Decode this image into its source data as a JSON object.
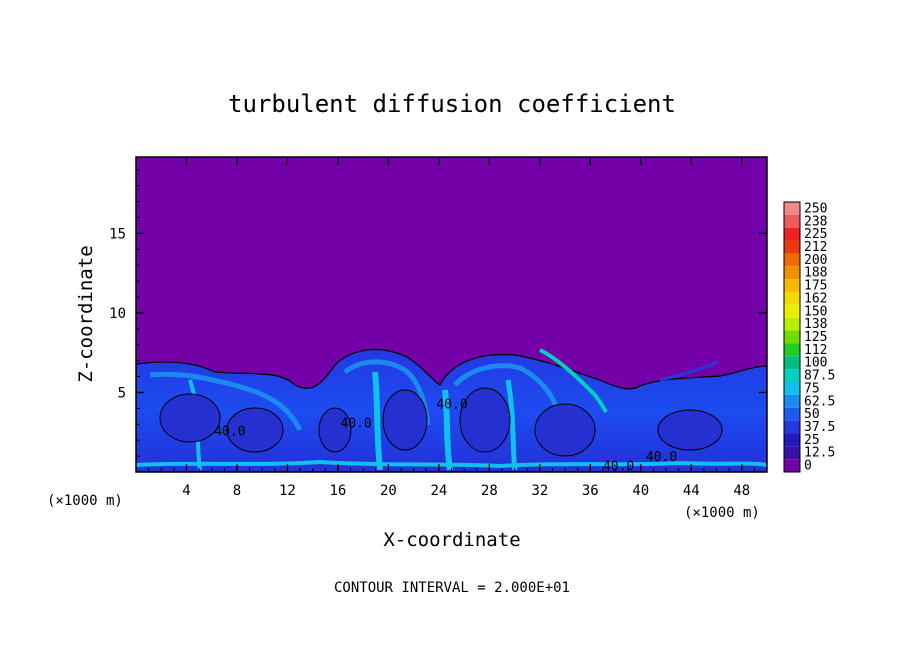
{
  "chart_data": {
    "type": "heatmap",
    "title": "turbulent diffusion coefficient",
    "xlabel": "X-coordinate",
    "ylabel": "Z-coordinate",
    "x_units": "(×1000 m)",
    "y_units": "(×1000 m)",
    "xlim": [
      0,
      50
    ],
    "ylim": [
      0,
      19.8
    ],
    "x_ticks": [
      4,
      8,
      12,
      16,
      20,
      24,
      28,
      32,
      36,
      40,
      44,
      48
    ],
    "y_ticks": [
      5,
      10,
      15
    ],
    "contour_interval_text": "CONTOUR INTERVAL = 2.000E+01",
    "contour_labels": [
      {
        "text": "40.0",
        "x": 6.2,
        "z": 2.3
      },
      {
        "text": "40.0",
        "x": 16.2,
        "z": 2.8
      },
      {
        "text": "40.0",
        "x": 23.8,
        "z": 4.0
      },
      {
        "text": "40.0",
        "x": 37.0,
        "z": 0.1
      },
      {
        "text": "40.0",
        "x": 40.4,
        "z": 0.7
      }
    ],
    "colorbar": {
      "labels": [
        "250",
        "238",
        "225",
        "212",
        "200",
        "188",
        "175",
        "162",
        "150",
        "138",
        "125",
        "112",
        "100",
        "87.5",
        "75",
        "62.5",
        "50",
        "37.5",
        "25",
        "12.5",
        "0"
      ],
      "colors": [
        "#ef8a8a",
        "#ee5a5a",
        "#ec2222",
        "#e83a10",
        "#ef6a00",
        "#f39000",
        "#f6b800",
        "#f5dc00",
        "#e6f000",
        "#b6ef00",
        "#6edc00",
        "#22cc22",
        "#00c080",
        "#00d0c0",
        "#10c0f0",
        "#1a8af0",
        "#1c5cf0",
        "#2438e0",
        "#2418c0",
        "#3a0fa8",
        "#7400a8"
      ]
    },
    "field": {
      "background_value": 0,
      "layer_top_z": 7.0,
      "layer_mean_value": 40,
      "peak_value": 87.5
    }
  }
}
